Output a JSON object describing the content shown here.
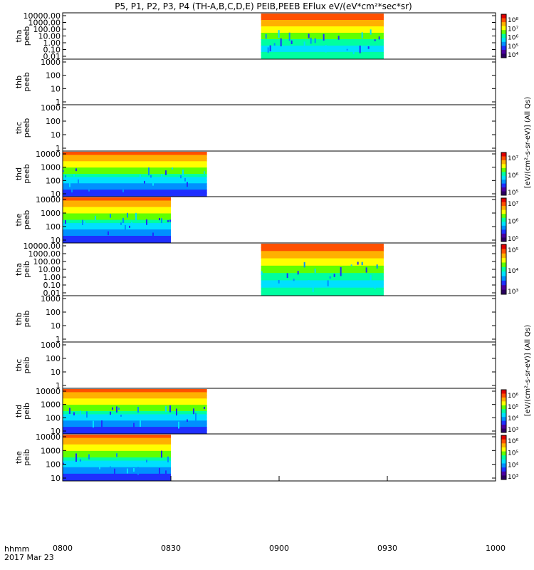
{
  "title": "P5, P1, P2, P3, P4 (TH-A,B,C,D,E) PEIB,PEEB EFlux eV/(eV*cm²*sec*sr)",
  "footer": {
    "line1": "hhmm",
    "line2": "2017 Mar 23"
  },
  "colorbar_units": "eV/(cm²-s-sr-eV)",
  "colorbar_suffix": "(All Qs)",
  "palette": [
    "#2a0060",
    "#4b00a0",
    "#1f2fff",
    "#0090ff",
    "#00e0ff",
    "#00ffa0",
    "#60ff00",
    "#ffff00",
    "#ffb000",
    "#ff5000",
    "#e00000"
  ],
  "chart_data": {
    "type": "heatmap",
    "x_ticks": [
      "0800",
      "0830",
      "0900",
      "0930",
      "1000"
    ],
    "x_range_minutes": [
      0,
      120
    ],
    "panels": [
      {
        "probe": "tha",
        "product": "peeb",
        "yticks": [
          "10000.00",
          "1000.00",
          "100.00",
          "10.00",
          "1.00",
          "0.10",
          "0.01"
        ],
        "ylog": [
          -2,
          4
        ],
        "data_from": 55,
        "data_to": 89,
        "cbar": [
          "10⁸",
          "10⁷",
          "10⁶",
          "10⁵",
          "10⁴"
        ]
      },
      {
        "probe": "thb",
        "product": "peeb",
        "yticks": [
          "1000",
          "100",
          "10",
          "1"
        ],
        "ylog": [
          0,
          3
        ],
        "data_from": null,
        "data_to": null,
        "cbar": null
      },
      {
        "probe": "thc",
        "product": "peeb",
        "yticks": [
          "1000",
          "100",
          "10",
          "1"
        ],
        "ylog": [
          0,
          3
        ],
        "data_from": null,
        "data_to": null,
        "cbar": null
      },
      {
        "probe": "thd",
        "product": "peeb",
        "yticks": [
          "10000",
          "1000",
          "100",
          "10"
        ],
        "ylog": [
          0.8,
          4.4
        ],
        "data_from": 0,
        "data_to": 40,
        "cbar": [
          "10⁷",
          "10⁶",
          "10⁵"
        ]
      },
      {
        "probe": "the",
        "product": "peeb",
        "yticks": [
          "10000",
          "1000",
          "100",
          "10"
        ],
        "ylog": [
          0.8,
          4.4
        ],
        "data_from": 0,
        "data_to": 30,
        "cbar": [
          "10⁷",
          "10⁶",
          "10⁵"
        ]
      },
      {
        "probe": "tha",
        "product": "peib",
        "yticks": [
          "10000.00",
          "1000.00",
          "100.00",
          "10.00",
          "1.00",
          "0.10",
          "0.01"
        ],
        "ylog": [
          -2,
          4
        ],
        "data_from": 55,
        "data_to": 89,
        "cbar": [
          "10⁵",
          "10⁴",
          "10³"
        ]
      },
      {
        "probe": "thb",
        "product": "peib",
        "yticks": [
          "1000",
          "100",
          "10",
          "1"
        ],
        "ylog": [
          0,
          3
        ],
        "data_from": null,
        "data_to": null,
        "cbar": null
      },
      {
        "probe": "thc",
        "product": "peib",
        "yticks": [
          "1000",
          "100",
          "10",
          "1"
        ],
        "ylog": [
          0,
          3
        ],
        "data_from": null,
        "data_to": null,
        "cbar": null
      },
      {
        "probe": "thd",
        "product": "peib",
        "yticks": [
          "10000",
          "1000",
          "100",
          "10"
        ],
        "ylog": [
          0.8,
          4.4
        ],
        "data_from": 0,
        "data_to": 40,
        "cbar": [
          "10⁶",
          "10⁵",
          "10⁴",
          "10³"
        ]
      },
      {
        "probe": "the",
        "product": "peib",
        "yticks": [
          "10000",
          "1000",
          "100",
          "10"
        ],
        "ylog": [
          0.8,
          4.4
        ],
        "data_from": 0,
        "data_to": 30,
        "cbar": [
          "10⁶",
          "10⁵",
          "10⁴",
          "10³"
        ]
      }
    ]
  }
}
